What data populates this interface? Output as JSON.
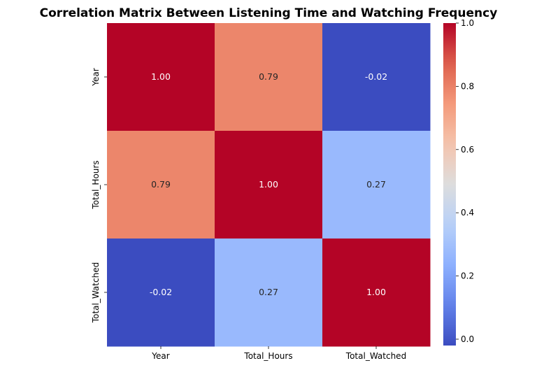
{
  "chart_data": {
    "type": "heatmap",
    "title": "Correlation Matrix Between Listening Time and Watching Frequency",
    "xlabel": "",
    "ylabel": "",
    "x_labels": [
      "Year",
      "Total_Hours",
      "Total_Watched"
    ],
    "y_labels": [
      "Year",
      "Total_Hours",
      "Total_Watched"
    ],
    "values": [
      [
        1.0,
        0.79,
        -0.02
      ],
      [
        0.79,
        1.0,
        0.27
      ],
      [
        -0.02,
        0.27,
        1.0
      ]
    ],
    "annotations": [
      [
        "1.00",
        "0.79",
        "-0.02"
      ],
      [
        "0.79",
        "1.00",
        "0.27"
      ],
      [
        "-0.02",
        "0.27",
        "1.00"
      ]
    ],
    "colormap": "coolwarm",
    "vmin": -0.02,
    "vmax": 1.0,
    "colorbar": {
      "ticks": [
        0.0,
        0.2,
        0.4,
        0.6,
        0.8,
        1.0
      ],
      "tick_labels": [
        "0.0",
        "0.2",
        "0.4",
        "0.6",
        "0.8",
        "1.0"
      ]
    },
    "grid": false
  }
}
